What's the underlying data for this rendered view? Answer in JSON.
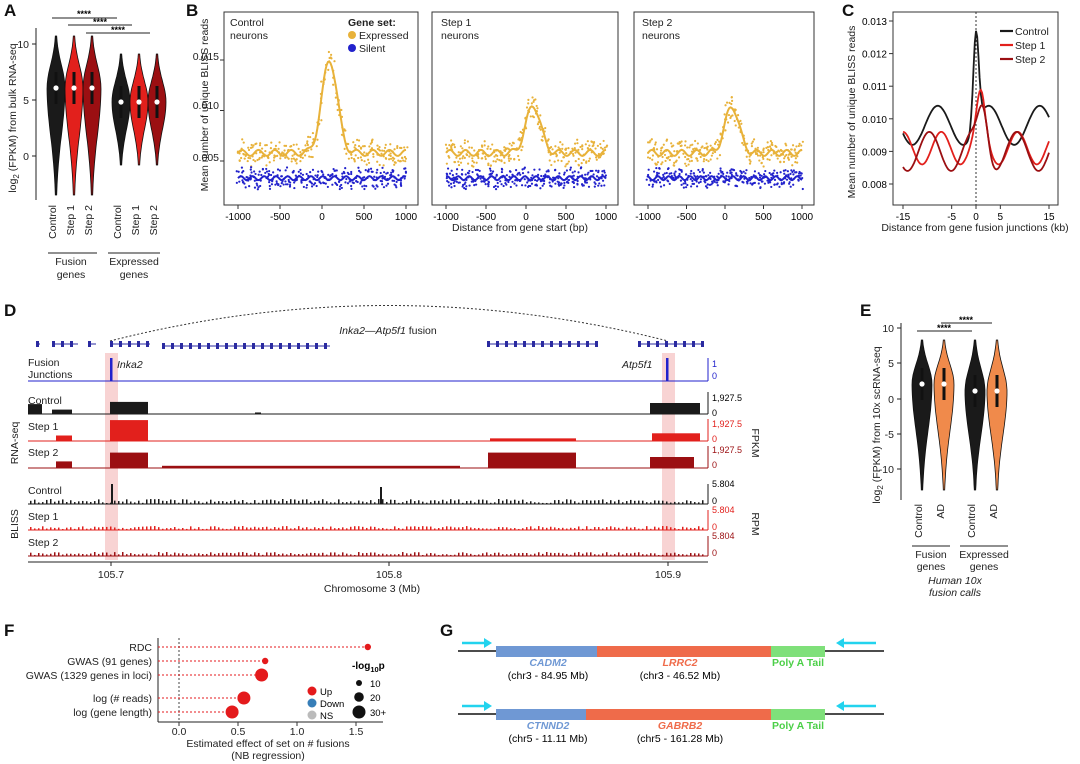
{
  "panel_letters": [
    "A",
    "B",
    "C",
    "D",
    "E",
    "F",
    "G"
  ],
  "colors": {
    "black": "#1a1a1a",
    "red": "#e2201c",
    "darkred": "#9b0f12",
    "gold": "#e8b23a",
    "blue": "#2222cc",
    "orange": "#f08a4b",
    "cadm": "#6f98d4",
    "lrrc": "#ef6b4a",
    "polya": "#7fe07a",
    "arrow": "#22d3ee",
    "highlight": "#f6c8c8",
    "nb_red": "#e41a1c",
    "nb_blue": "#377eb8",
    "nb_gray": "#bbbbbb"
  },
  "panelA": {
    "ylabel_main": "log",
    "ylabel_sub": "2",
    "ylabel_rest": " (FPKM) from bulk RNA-seq",
    "yticks": [
      "0",
      "5",
      "10"
    ],
    "xticks": [
      "Control",
      "Step 1",
      "Step 2",
      "Control",
      "Step 1",
      "Step 2"
    ],
    "group1": "Fusion",
    "group1b": "genes",
    "group2": "Expressed",
    "group2b": "genes",
    "sig": [
      "****",
      "****",
      "****"
    ]
  },
  "panelB": {
    "ylabel": "Mean number of unique BLISS reads",
    "xlabel": "Distance from gene start (bp)",
    "yticks": [
      "0.005",
      "0.010",
      "0.015"
    ],
    "xticks": [
      "-1000",
      "-500",
      "0",
      "500",
      "1000"
    ],
    "legend_title": "Gene set:",
    "legend_items": [
      "Expressed",
      "Silent"
    ],
    "subpanels": [
      {
        "title1": "Control",
        "title2": "neurons"
      },
      {
        "title1": "Step 1",
        "title2": "neurons"
      },
      {
        "title1": "Step 2",
        "title2": "neurons"
      }
    ]
  },
  "panelC": {
    "ylabel": "Mean number of unique BLISS reads",
    "xlabel": "Distance from gene fusion junctions (kb)",
    "yticks": [
      "0.008",
      "0.009",
      "0.010",
      "0.011",
      "0.012",
      "0.013"
    ],
    "xticks": [
      "-15",
      "-5",
      "0",
      "5",
      "15"
    ],
    "legend": [
      "Control",
      "Step 1",
      "Step 2"
    ]
  },
  "panelD": {
    "title_gene1": "Inka2",
    "title_sep": "—",
    "title_gene2": "Atp5f1",
    "title_rest": " fusion",
    "fusion_label1": "Fusion",
    "fusion_label2": "Junctions",
    "gene1": "Inka2",
    "gene2": "Atp5f1",
    "fj_scale": [
      "1",
      "0"
    ],
    "rnaseq_label": "RNA-seq",
    "bliss_label": "BLISS",
    "fpkm": "FPKM",
    "rpm": "RPM",
    "tracks_rna": [
      {
        "name": "Control",
        "max": "1,927.5",
        "min": "0"
      },
      {
        "name": "Step 1",
        "max": "1,927.5",
        "min": "0"
      },
      {
        "name": "Step 2",
        "max": "1,927.5",
        "min": "0"
      }
    ],
    "tracks_bliss": [
      {
        "name": "Control",
        "max": "5.804",
        "min": "0"
      },
      {
        "name": "Step 1",
        "max": "5.804",
        "min": "0"
      },
      {
        "name": "Step 2",
        "max": "5.804",
        "min": "0"
      }
    ],
    "xticks": [
      "105.7",
      "105.8",
      "105.9"
    ],
    "xlabel": "Chromosome 3 (Mb)"
  },
  "panelE": {
    "ylabel_main": "log",
    "ylabel_sub": "2",
    "ylabel_rest": " (FPKM) from 10x scRNA-seq",
    "yticks": [
      "-10",
      "-5",
      "0",
      "5",
      "10"
    ],
    "xticks": [
      "Control",
      "AD",
      "Control",
      "AD"
    ],
    "group1": "Fusion",
    "group1b": "genes",
    "group2": "Expressed",
    "group2b": "genes",
    "caption1": "Human 10x",
    "caption2": "fusion calls",
    "sig": [
      "****",
      "****"
    ]
  },
  "panelF": {
    "rows": [
      "RDC",
      "GWAS (91 genes)",
      "GWAS (1329 genes in loci)",
      "log (# reads)",
      "log (gene length)"
    ],
    "effects": [
      1.6,
      0.73,
      0.7,
      0.55,
      0.45
    ],
    "sizes": [
      10,
      10,
      30,
      30,
      30
    ],
    "xticks": [
      "0.0",
      "0.5",
      "1.0",
      "1.5"
    ],
    "xlabel1": "Estimated effect of set on # fusions",
    "xlabel2": "(NB regression)",
    "legend_dir": [
      "Up",
      "Down",
      "NS"
    ],
    "legend_size_title": "-log",
    "legend_size_sub": "10",
    "legend_size_p": "p",
    "legend_sizes": [
      "10",
      "20",
      "30+"
    ]
  },
  "panelG": {
    "fusions": [
      {
        "gene1": "CADM2",
        "loc1": "(chr3 -  84.95 Mb)",
        "gene2": "LRRC2",
        "loc2": "(chr3 - 46.52 Mb)",
        "tail": "Poly A Tail"
      },
      {
        "gene1": "CTNND2",
        "loc1": "(chr5 - 11.11 Mb)",
        "gene2": "GABRB2",
        "loc2": "(chr5 - 161.28 Mb)",
        "tail": "Poly A Tail"
      }
    ]
  }
}
